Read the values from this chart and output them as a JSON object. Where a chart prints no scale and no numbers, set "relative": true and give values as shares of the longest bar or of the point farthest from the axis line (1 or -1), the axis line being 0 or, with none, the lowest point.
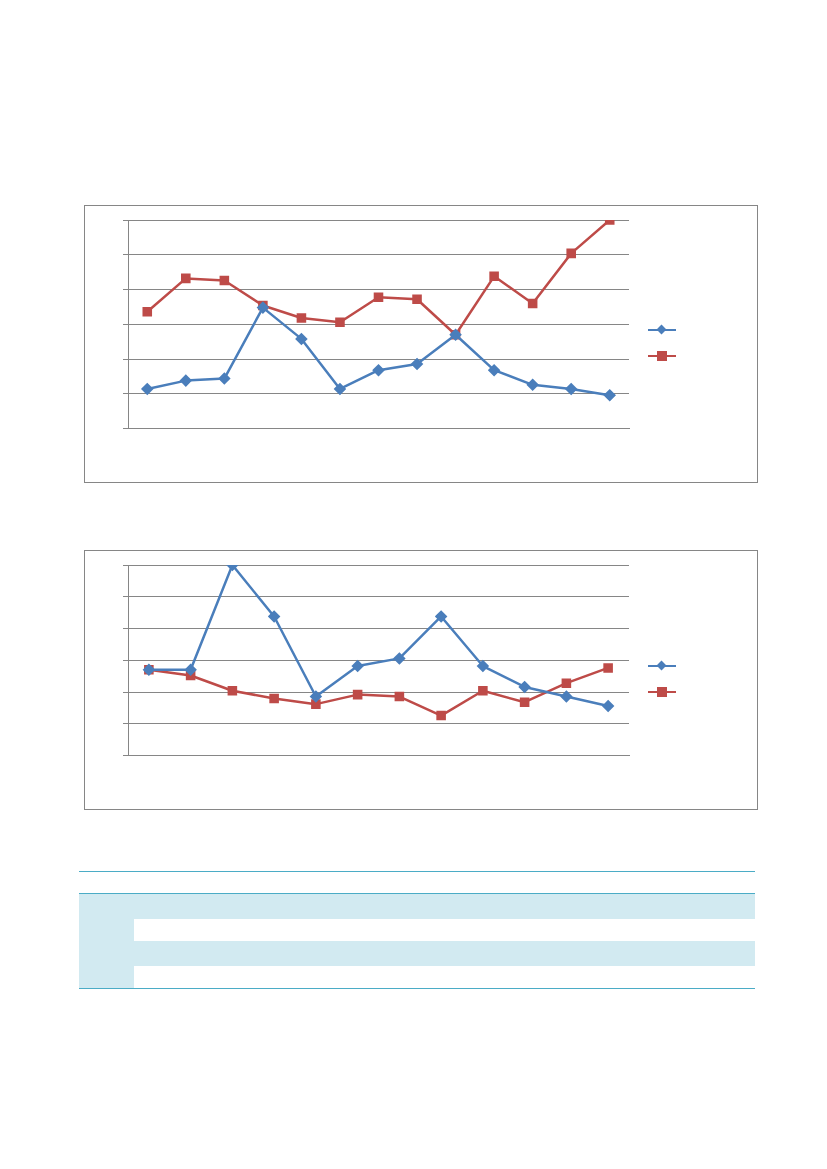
{
  "chart_data": [
    {
      "type": "line",
      "relative": true,
      "categories": [
        null,
        null,
        null,
        null,
        null,
        null,
        null,
        null,
        null,
        null,
        null,
        null,
        null
      ],
      "grid": "y",
      "line_style": "solid",
      "series": [
        {
          "color": "#4a7ebb",
          "marker": "diamond",
          "values": [
            0.19,
            0.23,
            0.24,
            0.58,
            0.43,
            0.19,
            0.28,
            0.31,
            0.45,
            0.28,
            0.21,
            0.19,
            0.16
          ]
        },
        {
          "color": "#be4b48",
          "marker": "square",
          "values": [
            0.56,
            0.72,
            0.71,
            0.59,
            0.53,
            0.51,
            0.63,
            0.62,
            0.45,
            0.73,
            0.6,
            0.84,
            1
          ]
        }
      ]
    },
    {
      "type": "line",
      "relative": true,
      "categories": [
        null,
        null,
        null,
        null,
        null,
        null,
        null,
        null,
        null,
        null,
        null,
        null
      ],
      "grid": "y",
      "line_style": "solid",
      "series": [
        {
          "color": "#4a7ebb",
          "marker": "diamond",
          "values": [
            0.45,
            0.45,
            1,
            0.73,
            0.31,
            0.47,
            0.51,
            0.73,
            0.47,
            0.36,
            0.31,
            0.26
          ]
        },
        {
          "color": "#be4b48",
          "marker": "square",
          "values": [
            0.45,
            0.42,
            0.34,
            0.3,
            0.27,
            0.32,
            0.31,
            0.21,
            0.34,
            0.28,
            0.38,
            0.46
          ]
        }
      ]
    }
  ]
}
